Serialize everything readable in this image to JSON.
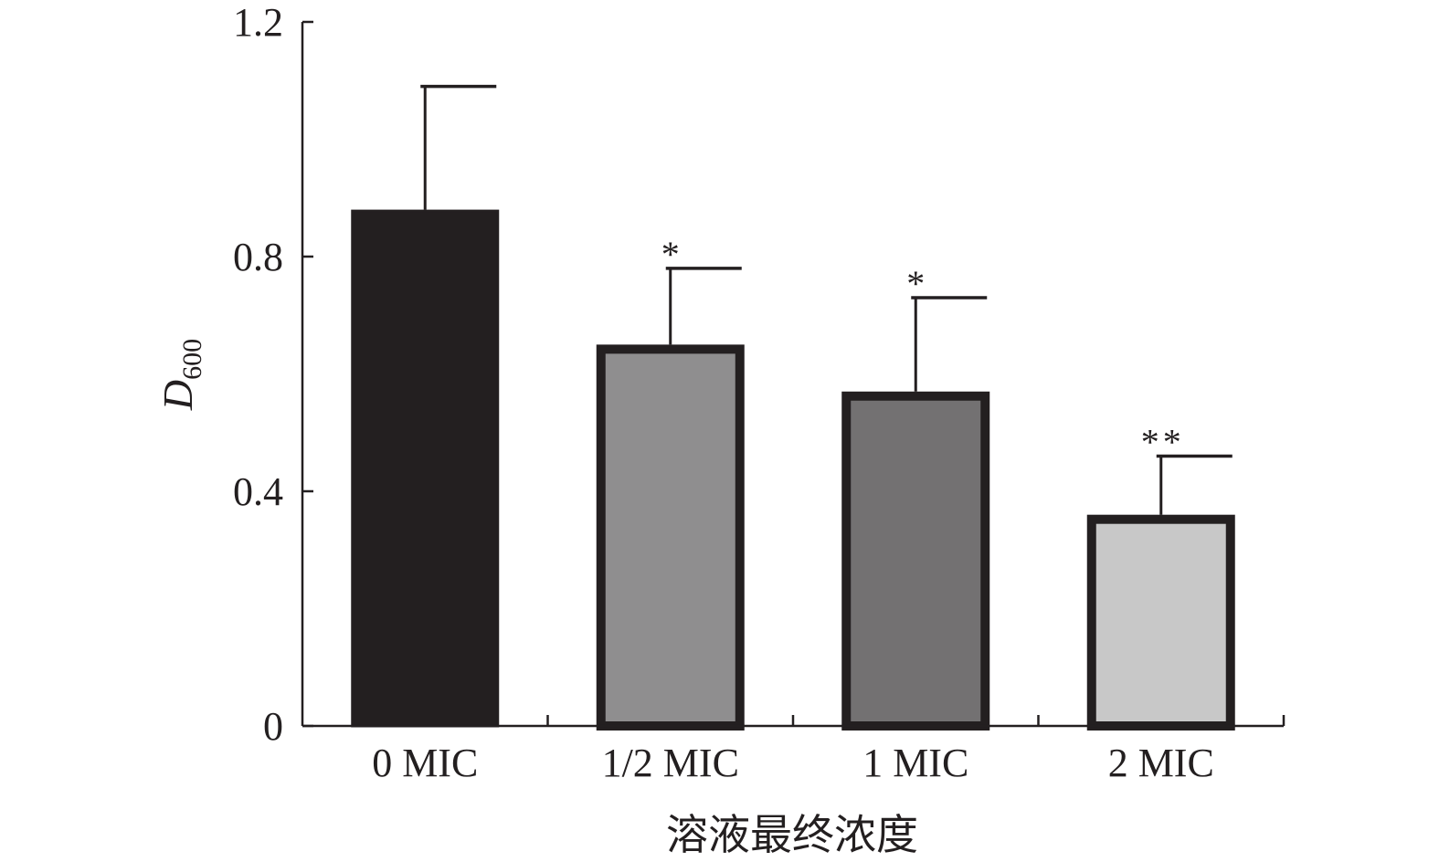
{
  "chart_data": {
    "type": "bar",
    "title": "",
    "xlabel": "溶液最终浓度",
    "ylabel": {
      "main": "D",
      "sub": "600"
    },
    "ylim": [
      0,
      1.2
    ],
    "yticks": [
      0,
      0.4,
      0.8,
      1.2
    ],
    "ytick_labels": [
      "0",
      "0.4",
      "0.8",
      "1.2"
    ],
    "categories": [
      "0 MIC",
      "1/2 MIC",
      "1 MIC",
      "2 MIC"
    ],
    "values": [
      0.88,
      0.65,
      0.57,
      0.36
    ],
    "errors": [
      0.21,
      0.13,
      0.16,
      0.1
    ],
    "significance": [
      "",
      "*",
      "*",
      "**"
    ],
    "fills": [
      "#231f20",
      "#8f8e8f",
      "#737172",
      "#c8c8c8"
    ],
    "outline": "#231f20",
    "grid": false,
    "legend": "none"
  }
}
